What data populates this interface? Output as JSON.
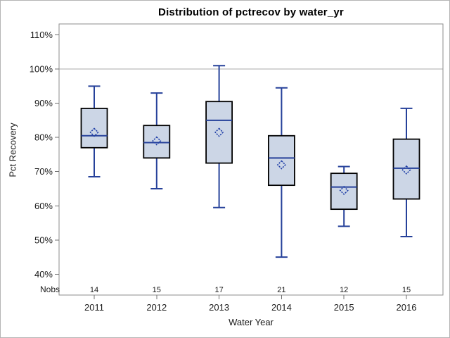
{
  "figure": {
    "nobs_label": "Nobs"
  },
  "chart_data": {
    "type": "boxplot",
    "title": "Distribution of pctrecov by water_yr",
    "xlabel": "Water Year",
    "ylabel": "Pct Recovery",
    "categories": [
      "2011",
      "2012",
      "2013",
      "2014",
      "2015",
      "2016"
    ],
    "nobs": [
      14,
      15,
      17,
      21,
      12,
      15
    ],
    "series": [
      {
        "category": "2011",
        "whisker_low": 68.5,
        "q1": 77,
        "median": 80.5,
        "q3": 88.5,
        "whisker_high": 95,
        "mean": 81.5
      },
      {
        "category": "2012",
        "whisker_low": 65,
        "q1": 74,
        "median": 78.5,
        "q3": 83.5,
        "whisker_high": 93,
        "mean": 79
      },
      {
        "category": "2013",
        "whisker_low": 59.5,
        "q1": 72.5,
        "median": 85,
        "q3": 90.5,
        "whisker_high": 101,
        "mean": 81.5
      },
      {
        "category": "2014",
        "whisker_low": 45,
        "q1": 66,
        "median": 74,
        "q3": 80.5,
        "whisker_high": 94.5,
        "mean": 72
      },
      {
        "category": "2015",
        "whisker_low": 54,
        "q1": 59,
        "median": 65.5,
        "q3": 69.5,
        "whisker_high": 71.5,
        "mean": 64.5
      },
      {
        "category": "2016",
        "whisker_low": 51,
        "q1": 62,
        "median": 71,
        "q3": 79.5,
        "whisker_high": 88.5,
        "mean": 70.5
      }
    ],
    "yticks": [
      40,
      50,
      60,
      70,
      80,
      90,
      100,
      110
    ],
    "ytick_labels": [
      "40%",
      "50%",
      "60%",
      "70%",
      "80%",
      "90%",
      "100%",
      "110%"
    ],
    "ylim": [
      33.9,
      113.2
    ],
    "reference_line": 100,
    "grid": "off",
    "legend": "none",
    "colors": {
      "box_fill": "#ccd6e6",
      "box_border": "#000000",
      "whisker": "#26419a",
      "median_line": "#26419a",
      "mean_marker": "#1c3ca6",
      "reference_line": "#a8a8a8",
      "frame": "#8e8e8e",
      "tick": "#707070",
      "text": "#1a1a1a"
    }
  }
}
